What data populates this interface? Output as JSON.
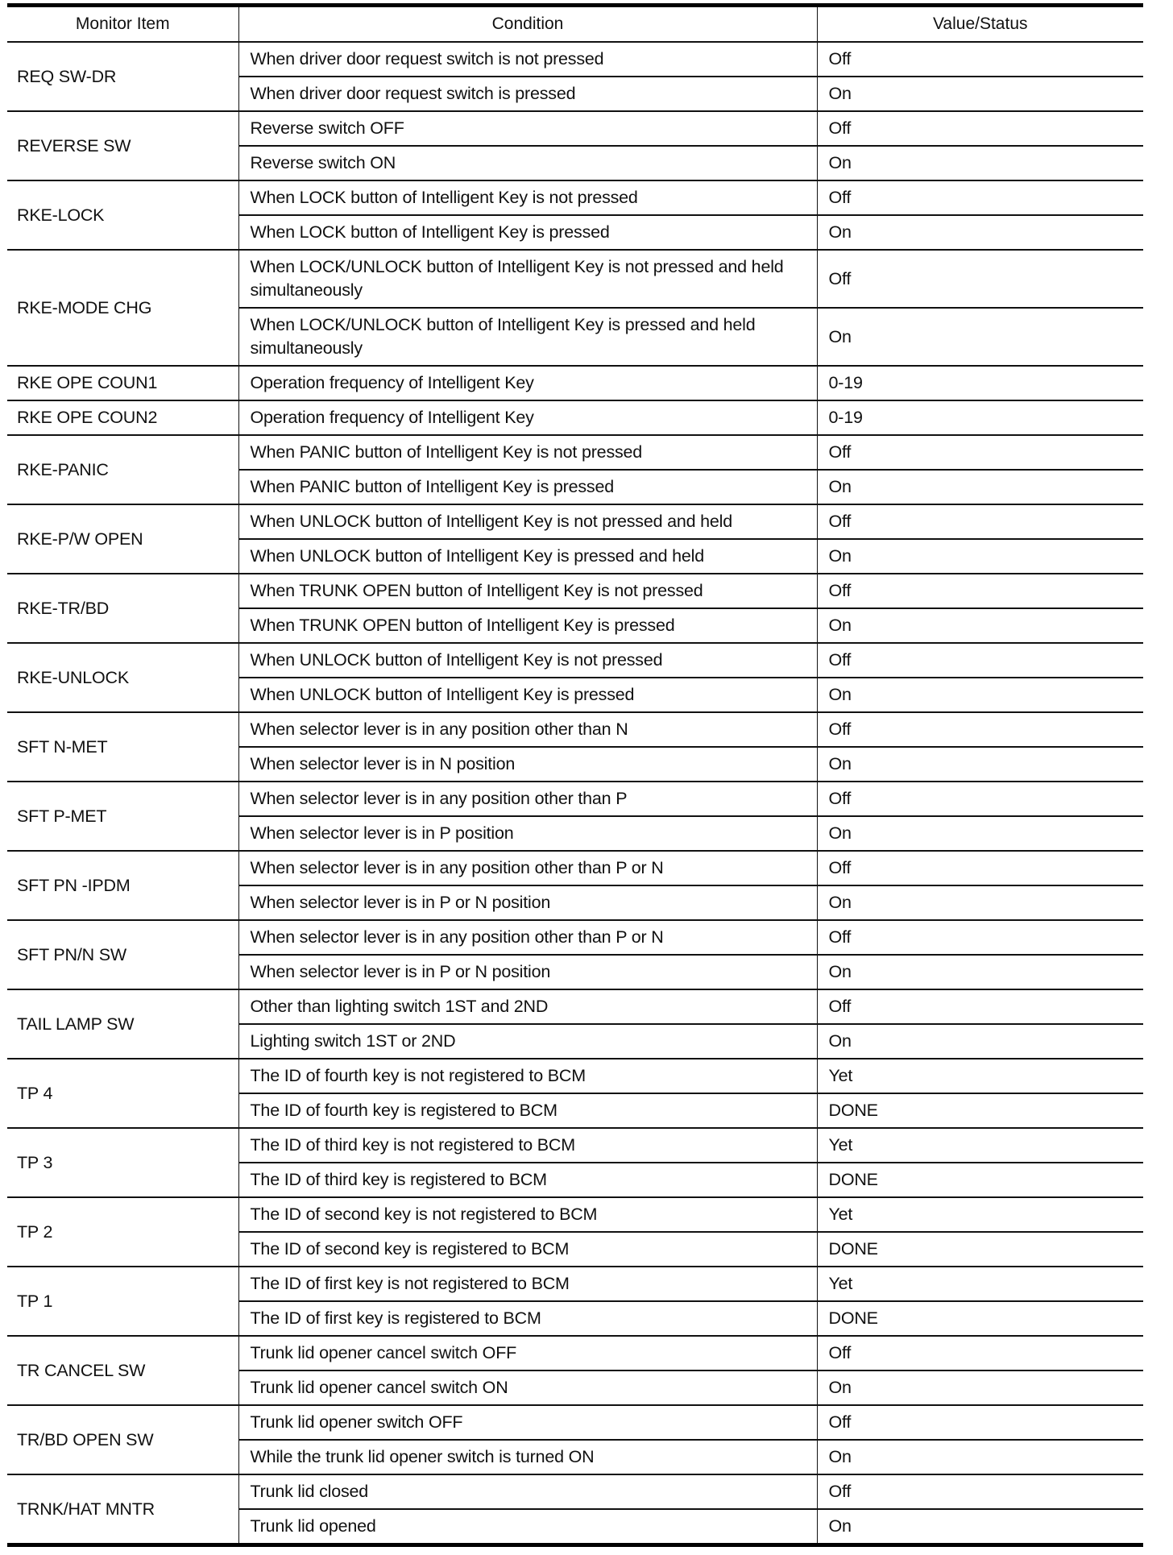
{
  "headers": [
    "Monitor Item",
    "Condition",
    "Value/Status"
  ],
  "items": [
    {
      "name": "REQ SW-DR",
      "rows": [
        {
          "condition": "When driver door request switch is not pressed",
          "value": "Off"
        },
        {
          "condition": "When driver door request switch is pressed",
          "value": "On"
        }
      ]
    },
    {
      "name": "REVERSE SW",
      "rows": [
        {
          "condition": "Reverse switch OFF",
          "value": "Off"
        },
        {
          "condition": "Reverse switch ON",
          "value": "On"
        }
      ]
    },
    {
      "name": "RKE-LOCK",
      "rows": [
        {
          "condition": "When LOCK button of Intelligent Key is not pressed",
          "value": "Off"
        },
        {
          "condition": "When LOCK button of Intelligent Key is pressed",
          "value": "On"
        }
      ]
    },
    {
      "name": "RKE-MODE CHG",
      "tall": true,
      "rows": [
        {
          "condition": "When LOCK/UNLOCK button of Intelligent Key is not pressed and held simultaneously",
          "value": "Off"
        },
        {
          "condition": "When LOCK/UNLOCK button of Intelligent Key is pressed and held simultaneously",
          "value": "On"
        }
      ]
    },
    {
      "name": "RKE OPE COUN1",
      "rows": [
        {
          "condition": "Operation frequency of Intelligent Key",
          "value": "0-19"
        }
      ]
    },
    {
      "name": "RKE OPE COUN2",
      "rows": [
        {
          "condition": "Operation frequency of Intelligent Key",
          "value": "0-19"
        }
      ]
    },
    {
      "name": "RKE-PANIC",
      "rows": [
        {
          "condition": "When PANIC button of Intelligent Key is not pressed",
          "value": "Off"
        },
        {
          "condition": "When PANIC button of Intelligent Key is pressed",
          "value": "On"
        }
      ]
    },
    {
      "name": "RKE-P/W OPEN",
      "rows": [
        {
          "condition": "When UNLOCK button of Intelligent Key is not pressed and held",
          "value": "Off"
        },
        {
          "condition": "When UNLOCK button of Intelligent Key is pressed and held",
          "value": "On"
        }
      ]
    },
    {
      "name": "RKE-TR/BD",
      "rows": [
        {
          "condition": "When TRUNK OPEN button of Intelligent Key is not pressed",
          "value": "Off"
        },
        {
          "condition": "When TRUNK OPEN button of Intelligent Key is pressed",
          "value": "On"
        }
      ]
    },
    {
      "name": "RKE-UNLOCK",
      "rows": [
        {
          "condition": "When UNLOCK button of Intelligent Key is not pressed",
          "value": "Off"
        },
        {
          "condition": "When UNLOCK button of Intelligent Key is pressed",
          "value": "On"
        }
      ]
    },
    {
      "name": "SFT N-MET",
      "rows": [
        {
          "condition": "When selector lever is in any position other than N",
          "value": "Off"
        },
        {
          "condition": "When selector lever is in N position",
          "value": "On"
        }
      ]
    },
    {
      "name": "SFT P-MET",
      "rows": [
        {
          "condition": "When selector lever is in any position other than P",
          "value": "Off"
        },
        {
          "condition": "When selector lever is in P position",
          "value": "On"
        }
      ]
    },
    {
      "name": "SFT PN -IPDM",
      "rows": [
        {
          "condition": "When selector lever is in any position other than P or N",
          "value": "Off"
        },
        {
          "condition": "When selector lever is in P or N position",
          "value": "On"
        }
      ]
    },
    {
      "name": "SFT PN/N SW",
      "rows": [
        {
          "condition": "When selector lever is in any position other than P or N",
          "value": "Off"
        },
        {
          "condition": "When selector lever is in P or N position",
          "value": "On"
        }
      ]
    },
    {
      "name": "TAIL LAMP SW",
      "rows": [
        {
          "condition": "Other than lighting switch 1ST and 2ND",
          "value": "Off"
        },
        {
          "condition": "Lighting switch 1ST or 2ND",
          "value": "On"
        }
      ]
    },
    {
      "name": "TP 4",
      "rows": [
        {
          "condition": "The ID of fourth key is not registered to BCM",
          "value": "Yet"
        },
        {
          "condition": "The ID of fourth key is registered to BCM",
          "value": "DONE"
        }
      ]
    },
    {
      "name": "TP 3",
      "rows": [
        {
          "condition": "The ID of third key is not registered to BCM",
          "value": "Yet"
        },
        {
          "condition": "The ID of third key is registered to BCM",
          "value": "DONE"
        }
      ]
    },
    {
      "name": "TP 2",
      "rows": [
        {
          "condition": "The ID of second key is not registered to BCM",
          "value": "Yet"
        },
        {
          "condition": "The ID of second key is registered to BCM",
          "value": "DONE"
        }
      ]
    },
    {
      "name": "TP 1",
      "rows": [
        {
          "condition": "The ID of first key is not registered to BCM",
          "value": "Yet"
        },
        {
          "condition": "The ID of first key is registered to BCM",
          "value": "DONE"
        }
      ]
    },
    {
      "name": "TR CANCEL SW",
      "rows": [
        {
          "condition": "Trunk lid opener cancel switch OFF",
          "value": "Off"
        },
        {
          "condition": "Trunk lid opener cancel switch ON",
          "value": "On"
        }
      ]
    },
    {
      "name": "TR/BD OPEN SW",
      "rows": [
        {
          "condition": "Trunk lid opener switch OFF",
          "value": "Off"
        },
        {
          "condition": "While the trunk lid opener switch is turned ON",
          "value": "On"
        }
      ]
    },
    {
      "name": "TRNK/HAT MNTR",
      "rows": [
        {
          "condition": "Trunk lid closed",
          "value": "Off"
        },
        {
          "condition": "Trunk lid opened",
          "value": "On"
        }
      ]
    }
  ]
}
